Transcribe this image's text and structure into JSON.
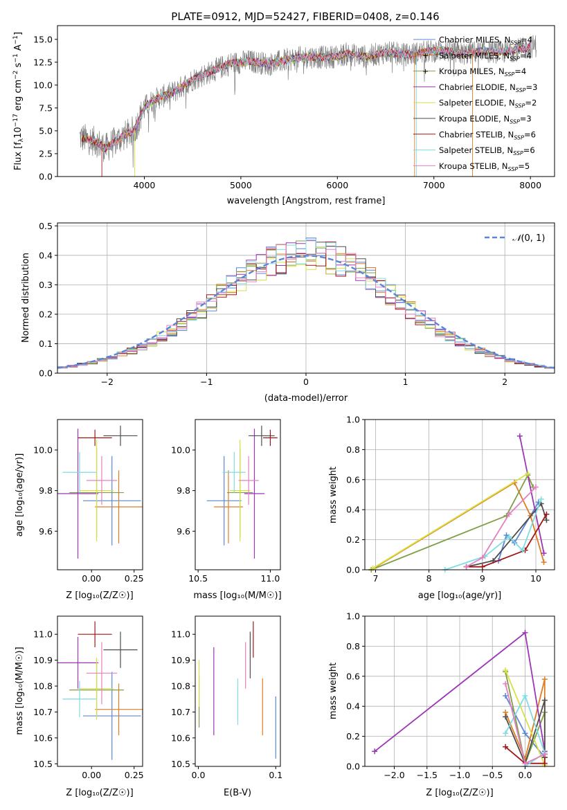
{
  "figure": {
    "title": "PLATE=0912, MJD=52427, FIBERID=0408, z=0.146"
  },
  "colors": {
    "blue": "#5b86d8",
    "orange": "#e07c20",
    "olive": "#7f9f45",
    "purple": "#9b35b5",
    "yellow": "#d8e042",
    "darkgray": "#4d4d4d",
    "darkred": "#a01616",
    "cyan": "#7ddde0",
    "pink": "#e37fc2",
    "gray": "#7f7f7f"
  },
  "chart_data": [
    {
      "id": "spectrum",
      "type": "line",
      "xlabel": "wavelength [Angstrom, rest frame]",
      "ylabel_main": "Flux [f",
      "ylabel_sub": "λ",
      "ylabel_mid": "10",
      "ylabel_sup1": "−17",
      "ylabel_tail1": " erg cm",
      "ylabel_sup2": "−2",
      "ylabel_tail2": " s",
      "ylabel_sup3": "−1",
      "ylabel_tail3": " A",
      "ylabel_sup4": "−1",
      "ylabel_end": "]",
      "xlim": [
        3100,
        8250
      ],
      "ylim": [
        0,
        16.5
      ],
      "xticks": [
        4000,
        5000,
        6000,
        7000,
        8000
      ],
      "yticks": [
        0.0,
        2.5,
        5.0,
        7.5,
        10.0,
        12.5,
        15.0
      ],
      "observed_anchors": {
        "x": [
          3330,
          3500,
          3600,
          3750,
          3900,
          4000,
          4100,
          4300,
          4500,
          4700,
          4900,
          5100,
          5300,
          5500,
          5700,
          5900,
          6100,
          6300,
          6500,
          6700,
          6900,
          7100,
          7300,
          7500,
          7700,
          7900,
          8050
        ],
        "y": [
          4.3,
          3.8,
          3.1,
          4.2,
          5.1,
          7.6,
          8.4,
          9.2,
          10.6,
          11.5,
          12.4,
          12.6,
          12.3,
          12.8,
          13.1,
          13.0,
          13.4,
          13.1,
          13.6,
          13.3,
          13.6,
          13.8,
          13.4,
          13.7,
          13.6,
          13.9,
          14.3
        ]
      },
      "legend_position": "upper right",
      "series": [
        {
          "name_main": "Chabrier MILES, N",
          "name_sub": "SSP",
          "name_end": "=4",
          "color": "#5b86d8"
        },
        {
          "name_main": "Salpeter MILES, N",
          "name_sub": "SSP",
          "name_end": "=4",
          "color": "#e07c20"
        },
        {
          "name_main": "Kroupa MILES, N",
          "name_sub": "SSP",
          "name_end": "=4",
          "color": "#7f9f45"
        },
        {
          "name_main": "Chabrier ELODIE, N",
          "name_sub": "SSP",
          "name_end": "=3",
          "color": "#9b35b5"
        },
        {
          "name_main": "Salpeter ELODIE, N",
          "name_sub": "SSP",
          "name_end": "=2",
          "color": "#d8e042"
        },
        {
          "name_main": "Kroupa ELODIE, N",
          "name_sub": "SSP",
          "name_end": "=3",
          "color": "#4d4d4d"
        },
        {
          "name_main": "Chabrier STELIB, N",
          "name_sub": "SSP",
          "name_end": "=6",
          "color": "#a01616"
        },
        {
          "name_main": "Salpeter STELIB, N",
          "name_sub": "SSP",
          "name_end": "=6",
          "color": "#7ddde0"
        },
        {
          "name_main": "Kroupa STELIB, N",
          "name_sub": "SSP",
          "name_end": "=5",
          "color": "#e37fc2"
        }
      ]
    },
    {
      "id": "residuals",
      "type": "histogram",
      "xlabel": "(data-model)/error",
      "ylabel": "Normed distribution",
      "xlim": [
        -2.5,
        2.5
      ],
      "ylim": [
        0,
        0.51
      ],
      "xticks": [
        -2,
        -1,
        0,
        1,
        2
      ],
      "yticks": [
        0.0,
        0.1,
        0.2,
        0.3,
        0.4,
        0.5
      ],
      "grid": true,
      "bins": {
        "start": -2.5,
        "width": 0.1,
        "count": 50
      },
      "mean_profile": [
        0.019,
        0.024,
        0.03,
        0.036,
        0.044,
        0.053,
        0.064,
        0.076,
        0.09,
        0.106,
        0.123,
        0.143,
        0.165,
        0.188,
        0.213,
        0.24,
        0.266,
        0.292,
        0.318,
        0.341,
        0.362,
        0.379,
        0.391,
        0.4,
        0.404,
        0.404,
        0.4,
        0.391,
        0.379,
        0.362,
        0.341,
        0.318,
        0.292,
        0.266,
        0.24,
        0.213,
        0.188,
        0.165,
        0.143,
        0.123,
        0.106,
        0.09,
        0.076,
        0.064,
        0.053,
        0.044,
        0.036,
        0.03,
        0.024,
        0.019
      ],
      "gaussian": {
        "label_script": "𝒩",
        "label_rest": "(0, 1)",
        "mu": 0,
        "sigma": 1,
        "color": "#5b86d8"
      },
      "legend_position": "upper right"
    },
    {
      "id": "age_vs_Z",
      "type": "scatter",
      "xlabel": "Z [log₁₀(Z/Z☉)]",
      "ylabel": "age  [log₁₀(age/yr)]",
      "xlim": [
        -0.2,
        0.3
      ],
      "ylim": [
        9.41,
        10.15
      ],
      "xticks": [
        0.0,
        0.25
      ],
      "yticks": [
        9.6,
        9.8,
        10.0
      ],
      "points": [
        {
          "x": 0.12,
          "y": 9.75,
          "xerr": 0.17,
          "yerr": 0.22,
          "color": "#5b86d8"
        },
        {
          "x": 0.16,
          "y": 9.72,
          "xerr": 0.14,
          "yerr": 0.18,
          "color": "#e07c20"
        },
        {
          "x": 0.03,
          "y": 9.79,
          "xerr": 0.16,
          "yerr": 0.22,
          "color": "#7f9f45"
        },
        {
          "x": -0.08,
          "y": 9.785,
          "xerr": 0.12,
          "yerr": 0.32,
          "color": "#9b35b5"
        },
        {
          "x": 0.03,
          "y": 9.8,
          "xerr": 0.1,
          "yerr": 0.25,
          "color": "#d8e042"
        },
        {
          "x": 0.17,
          "y": 10.07,
          "xerr": 0.1,
          "yerr": 0.05,
          "color": "#4d4d4d"
        },
        {
          "x": 0.02,
          "y": 10.06,
          "xerr": 0.1,
          "yerr": 0.04,
          "color": "#a01616"
        },
        {
          "x": -0.07,
          "y": 9.89,
          "xerr": 0.1,
          "yerr": 0.1,
          "color": "#7ddde0"
        },
        {
          "x": 0.06,
          "y": 9.85,
          "xerr": 0.09,
          "yerr": 0.12,
          "color": "#e37fc2"
        }
      ]
    },
    {
      "id": "age_vs_mass",
      "type": "scatter",
      "xlabel": "mass [log₁₀(M/M☉)]",
      "xlim": [
        10.48,
        11.07
      ],
      "ylim": [
        9.41,
        10.15
      ],
      "xticks": [
        10.5,
        11.0
      ],
      "yticks": [
        9.6,
        9.8,
        10.0
      ],
      "points": [
        {
          "x": 10.68,
          "y": 9.75,
          "xerr": 0.12,
          "yerr": 0.22,
          "color": "#5b86d8"
        },
        {
          "x": 10.71,
          "y": 9.72,
          "xerr": 0.1,
          "yerr": 0.18,
          "color": "#e07c20"
        },
        {
          "x": 10.79,
          "y": 9.79,
          "xerr": 0.09,
          "yerr": 0.22,
          "color": "#7f9f45"
        },
        {
          "x": 10.89,
          "y": 9.785,
          "xerr": 0.07,
          "yerr": 0.32,
          "color": "#9b35b5"
        },
        {
          "x": 10.79,
          "y": 9.8,
          "xerr": 0.07,
          "yerr": 0.25,
          "color": "#d8e042"
        },
        {
          "x": 10.94,
          "y": 10.07,
          "xerr": 0.09,
          "yerr": 0.05,
          "color": "#4d4d4d"
        },
        {
          "x": 11.0,
          "y": 10.06,
          "xerr": 0.05,
          "yerr": 0.04,
          "color": "#a01616"
        },
        {
          "x": 10.75,
          "y": 9.89,
          "xerr": 0.08,
          "yerr": 0.1,
          "color": "#7ddde0"
        },
        {
          "x": 10.85,
          "y": 9.85,
          "xerr": 0.07,
          "yerr": 0.12,
          "color": "#e37fc2"
        }
      ]
    },
    {
      "id": "weight_vs_age",
      "type": "line",
      "xlabel": "age  [log₁₀(age/yr)]",
      "ylabel": "mass weight",
      "xlim": [
        6.8,
        10.35
      ],
      "ylim": [
        0,
        1.0
      ],
      "xticks": [
        7,
        8,
        9,
        10
      ],
      "yticks": [
        0.0,
        0.2,
        0.4,
        0.6,
        0.8,
        1.0
      ],
      "grid": true,
      "series": [
        {
          "color": "#5b86d8",
          "x": [
            9.3,
            9.45,
            9.6,
            10.05
          ],
          "y": [
            0.06,
            0.23,
            0.18,
            0.45
          ]
        },
        {
          "color": "#e07c20",
          "x": [
            6.92,
            9.6,
            9.9,
            10.15
          ],
          "y": [
            0.0,
            0.58,
            0.36,
            0.05
          ]
        },
        {
          "color": "#7f9f45",
          "x": [
            6.92,
            9.45,
            9.85,
            9.95
          ],
          "y": [
            0.0,
            0.36,
            0.63,
            0.55
          ]
        },
        {
          "color": "#9b35b5",
          "x": [
            9.7,
            10.15
          ],
          "y": [
            0.89,
            0.11
          ]
        },
        {
          "color": "#d8e042",
          "x": [
            6.95,
            9.85
          ],
          "y": [
            0.01,
            0.64
          ]
        },
        {
          "color": "#4d4d4d",
          "x": [
            8.7,
            9.2,
            10.1,
            10.2
          ],
          "y": [
            0.02,
            0.06,
            0.44,
            0.33
          ]
        },
        {
          "color": "#a01616",
          "x": [
            8.7,
            9.0,
            9.8,
            10.2
          ],
          "y": [
            0.02,
            0.02,
            0.13,
            0.37
          ]
        },
        {
          "color": "#7ddde0",
          "x": [
            8.3,
            9.05,
            9.5,
            9.75,
            10.1
          ],
          "y": [
            0.0,
            0.09,
            0.22,
            0.13,
            0.47
          ]
        },
        {
          "color": "#e37fc2",
          "x": [
            8.7,
            9.0,
            9.5,
            10.0
          ],
          "y": [
            0.02,
            0.08,
            0.37,
            0.55
          ]
        }
      ]
    },
    {
      "id": "mass_vs_Z",
      "type": "scatter",
      "xlabel": "Z [log₁₀(Z/Z☉)]",
      "ylabel": "mass [log₁₀(M/M☉)]",
      "xlim": [
        -0.2,
        0.3
      ],
      "ylim": [
        10.49,
        11.07
      ],
      "xticks": [
        0.0,
        0.25
      ],
      "yticks": [
        10.5,
        10.6,
        10.7,
        10.8,
        10.9,
        11.0
      ],
      "points": [
        {
          "x": 0.12,
          "y": 10.685,
          "xerr": 0.17,
          "yerr": 0.17,
          "color": "#5b86d8"
        },
        {
          "x": 0.16,
          "y": 10.71,
          "xerr": 0.14,
          "yerr": 0.1,
          "color": "#e07c20"
        },
        {
          "x": 0.03,
          "y": 10.785,
          "xerr": 0.16,
          "yerr": 0.1,
          "color": "#7f9f45"
        },
        {
          "x": -0.08,
          "y": 10.89,
          "xerr": 0.12,
          "yerr": 0.1,
          "color": "#9b35b5"
        },
        {
          "x": 0.03,
          "y": 10.79,
          "xerr": 0.1,
          "yerr": 0.12,
          "color": "#d8e042"
        },
        {
          "x": 0.17,
          "y": 10.94,
          "xerr": 0.1,
          "yerr": 0.07,
          "color": "#4d4d4d"
        },
        {
          "x": 0.02,
          "y": 11.0,
          "xerr": 0.1,
          "yerr": 0.05,
          "color": "#a01616"
        },
        {
          "x": -0.07,
          "y": 10.75,
          "xerr": 0.1,
          "yerr": 0.07,
          "color": "#7ddde0"
        },
        {
          "x": 0.06,
          "y": 10.85,
          "xerr": 0.09,
          "yerr": 0.12,
          "color": "#e37fc2"
        }
      ]
    },
    {
      "id": "mass_vs_ebv",
      "type": "scatter",
      "xlabel": "E(B-V)",
      "xlim": [
        -0.004,
        0.106
      ],
      "ylim": [
        10.49,
        11.07
      ],
      "xticks": [
        0.0,
        0.1
      ],
      "yticks": [
        10.5,
        10.6,
        10.7,
        10.8,
        10.9,
        11.0
      ],
      "points": [
        {
          "x": 0.1,
          "y": 10.64,
          "xerr": 0.0,
          "yerr": 0.12,
          "color": "#5b86d8"
        },
        {
          "x": 0.083,
          "y": 10.72,
          "xerr": 0.0,
          "yerr": 0.11,
          "color": "#e07c20"
        },
        {
          "x": 0.001,
          "y": 10.74,
          "xerr": 0.0,
          "yerr": 0.1,
          "color": "#7f9f45"
        },
        {
          "x": 0.02,
          "y": 10.78,
          "xerr": 0.0,
          "yerr": 0.17,
          "color": "#9b35b5"
        },
        {
          "x": 0.001,
          "y": 10.81,
          "xerr": 0.0,
          "yerr": 0.09,
          "color": "#d8e042"
        },
        {
          "x": 0.067,
          "y": 10.92,
          "xerr": 0.0,
          "yerr": 0.09,
          "color": "#4d4d4d"
        },
        {
          "x": 0.071,
          "y": 10.98,
          "xerr": 0.0,
          "yerr": 0.07,
          "color": "#a01616"
        },
        {
          "x": 0.051,
          "y": 10.74,
          "xerr": 0.0,
          "yerr": 0.09,
          "color": "#7ddde0"
        },
        {
          "x": 0.061,
          "y": 10.88,
          "xerr": 0.0,
          "yerr": 0.09,
          "color": "#e37fc2"
        }
      ]
    },
    {
      "id": "weight_vs_Z",
      "type": "line",
      "xlabel": "Z [log₁₀(Z/Z☉)]",
      "ylabel": "mass weight",
      "xlim": [
        -2.45,
        0.45
      ],
      "ylim": [
        0,
        1.0
      ],
      "xticks": [
        -2.0,
        -1.5,
        -1.0,
        -0.5,
        0.0
      ],
      "yticks": [
        0.0,
        0.2,
        0.4,
        0.6,
        0.8,
        1.0
      ],
      "grid": true,
      "series": [
        {
          "color": "#5b86d8",
          "x": [
            -0.3,
            0.0,
            0.3
          ],
          "y": [
            0.47,
            0.22,
            0.06
          ]
        },
        {
          "color": "#e07c20",
          "x": [
            -0.3,
            0.0,
            0.3,
            0.3
          ],
          "y": [
            0.36,
            0.05,
            0.58,
            0.06
          ]
        },
        {
          "color": "#7f9f45",
          "x": [
            -0.3,
            0.0,
            0.3
          ],
          "y": [
            0.63,
            0.02,
            0.36
          ]
        },
        {
          "color": "#9b35b5",
          "x": [
            -2.3,
            0.0,
            0.3
          ],
          "y": [
            0.1,
            0.89,
            0.1
          ]
        },
        {
          "color": "#d8e042",
          "x": [
            -0.3,
            0.3
          ],
          "y": [
            0.64,
            0.01
          ]
        },
        {
          "color": "#4d4d4d",
          "x": [
            -0.3,
            0.0,
            0.3,
            0.3
          ],
          "y": [
            0.33,
            0.02,
            0.44,
            0.06
          ]
        },
        {
          "color": "#a01616",
          "x": [
            -0.3,
            0.0,
            0.3,
            0.3
          ],
          "y": [
            0.13,
            0.02,
            0.02,
            0.08
          ]
        },
        {
          "color": "#7ddde0",
          "x": [
            -0.3,
            0.0,
            0.3,
            0.0
          ],
          "y": [
            0.22,
            0.47,
            0.09,
            0.0
          ]
        },
        {
          "color": "#e37fc2",
          "x": [
            -0.3,
            0.0,
            0.3
          ],
          "y": [
            0.55,
            0.02,
            0.08
          ]
        }
      ]
    }
  ]
}
